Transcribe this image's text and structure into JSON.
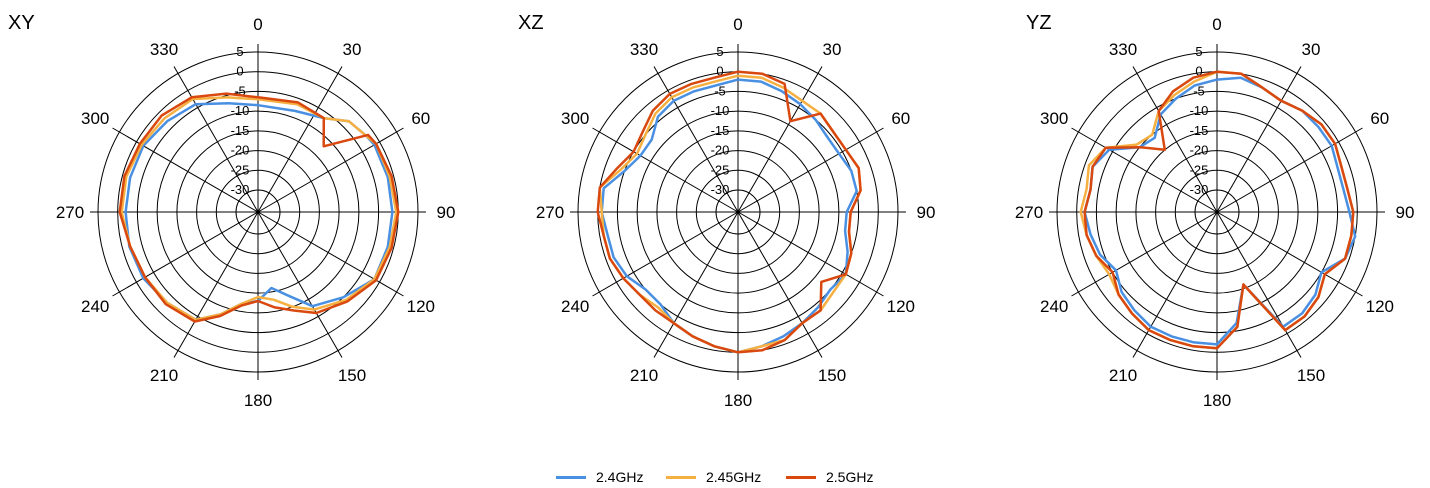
{
  "chart_data": [
    {
      "type": "polar-line",
      "title": "XY",
      "r_range": [
        -30,
        5
      ],
      "r_ticks": [
        "-30",
        "-25",
        "-20",
        "-15",
        "-10",
        "-5",
        "0",
        "5"
      ],
      "angle_ticks": [
        "0",
        "30",
        "60",
        "90",
        "120",
        "150",
        "180",
        "210",
        "240",
        "270",
        "300",
        "330"
      ],
      "series": [
        {
          "name": "2.4GHz",
          "angles": [
            0,
            20,
            35,
            45,
            55,
            60,
            75,
            90,
            105,
            120,
            135,
            150,
            160,
            170,
            180,
            190,
            200,
            210,
            225,
            240,
            255,
            270,
            285,
            300,
            315,
            330,
            345
          ],
          "values": [
            -8.5,
            -8.3,
            -6.5,
            -3,
            -2,
            -1.5,
            -1.5,
            -1.5,
            -1.5,
            -1.5,
            -5,
            -8,
            -13,
            -16,
            -13,
            -12,
            -8,
            -4,
            -3,
            -2,
            -1.8,
            -2,
            -2,
            -2,
            -3,
            -4,
            -7
          ]
        },
        {
          "name": "2.45GHz",
          "angles": [
            0,
            20,
            35,
            45,
            55,
            60,
            75,
            90,
            105,
            120,
            135,
            150,
            160,
            170,
            180,
            190,
            200,
            210,
            225,
            240,
            255,
            270,
            285,
            300,
            315,
            330,
            345
          ],
          "values": [
            -7,
            -6.5,
            -6.5,
            -3,
            -2,
            -1,
            -1,
            -0.5,
            -1,
            -1.5,
            -4,
            -7,
            -10,
            -13,
            -14,
            -12,
            -8,
            -4,
            -3,
            -2.5,
            -2,
            -1,
            -1,
            -1.5,
            -2,
            -2.5,
            -5.5
          ]
        },
        {
          "name": "2.5GHz",
          "angles": [
            0,
            20,
            35,
            45,
            55,
            60,
            75,
            90,
            105,
            120,
            135,
            150,
            160,
            170,
            180,
            190,
            200,
            210,
            225,
            240,
            255,
            270,
            285,
            300,
            315,
            330,
            345
          ],
          "values": [
            -6.5,
            -6,
            -6.5,
            -12,
            -1.5,
            -1,
            -0.5,
            0,
            -0.5,
            -1,
            -3.5,
            -6,
            -9,
            -11,
            -13,
            -11.5,
            -7.5,
            -3.5,
            -2.5,
            -2.5,
            -2,
            -0.5,
            -0.5,
            -1,
            -1,
            -2,
            -4.5
          ]
        }
      ]
    },
    {
      "type": "polar-line",
      "title": "XZ",
      "r_range": [
        -30,
        5
      ],
      "r_ticks": [
        "-30",
        "-25",
        "-20",
        "-15",
        "-10",
        "-5",
        "0",
        "5"
      ],
      "angle_ticks": [
        "0",
        "30",
        "60",
        "90",
        "120",
        "150",
        "180",
        "210",
        "240",
        "270",
        "300",
        "330"
      ],
      "series": [
        {
          "name": "2.4GHz",
          "angles": [
            0,
            10,
            20,
            30,
            40,
            50,
            60,
            70,
            80,
            90,
            100,
            110,
            120,
            130,
            140,
            150,
            160,
            170,
            180,
            190,
            200,
            210,
            220,
            230,
            240,
            250,
            260,
            270,
            280,
            290,
            300,
            310,
            320,
            330,
            340,
            350
          ],
          "values": [
            -2,
            -2,
            -3,
            -4,
            -5,
            -6,
            -6,
            -5,
            -5,
            -8,
            -8,
            -6,
            -4,
            -5,
            -4,
            -3,
            -2,
            -1,
            0,
            -1,
            -2,
            -3,
            -5,
            -5,
            -3,
            -2,
            -2,
            -1,
            -1,
            -5,
            -7,
            -7,
            -4,
            -3,
            -3,
            -3
          ]
        },
        {
          "name": "2.45GHz",
          "angles": [
            0,
            10,
            20,
            30,
            40,
            50,
            60,
            70,
            80,
            90,
            100,
            110,
            120,
            130,
            140,
            150,
            160,
            170,
            180,
            190,
            200,
            210,
            220,
            230,
            240,
            250,
            260,
            270,
            280,
            290,
            300,
            310,
            320,
            330,
            340,
            350
          ],
          "values": [
            -1,
            -1,
            -2,
            -3,
            -3,
            -4,
            -4,
            -3,
            -4,
            -7,
            -7,
            -5,
            -4,
            -4,
            -3,
            -3,
            -1,
            -1,
            0,
            -1,
            -2,
            -3,
            -4,
            -3,
            -2,
            -1,
            -1,
            -1,
            0,
            -4,
            -6,
            -5,
            -3,
            -2,
            -2,
            -2
          ]
        },
        {
          "name": "2.5GHz",
          "angles": [
            0,
            10,
            20,
            30,
            40,
            50,
            60,
            70,
            80,
            90,
            100,
            110,
            120,
            130,
            140,
            150,
            160,
            170,
            180,
            190,
            200,
            210,
            220,
            230,
            240,
            250,
            260,
            270,
            280,
            290,
            300,
            310,
            320,
            330,
            340,
            350
          ],
          "values": [
            0,
            0,
            -1,
            -9,
            -3,
            -4,
            -4,
            -3,
            -4,
            -7,
            -7,
            -5,
            -4,
            -8,
            -3,
            -3,
            -1,
            0,
            0,
            -1,
            -2,
            -3,
            -3,
            -3,
            -2,
            -1,
            -1,
            0,
            0,
            -3,
            -5,
            -4,
            -2,
            -1,
            -1,
            -1
          ]
        }
      ]
    },
    {
      "type": "polar-line",
      "title": "YZ",
      "r_range": [
        -30,
        5
      ],
      "r_ticks": [
        "-30",
        "-25",
        "-20",
        "-15",
        "-10",
        "-5",
        "0",
        "5"
      ],
      "angle_ticks": [
        "0",
        "30",
        "60",
        "90",
        "120",
        "150",
        "180",
        "210",
        "240",
        "270",
        "300",
        "330"
      ],
      "series": [
        {
          "name": "2.4GHz",
          "angles": [
            0,
            10,
            20,
            30,
            40,
            50,
            60,
            70,
            80,
            90,
            100,
            110,
            120,
            130,
            140,
            150,
            160,
            170,
            180,
            190,
            200,
            210,
            220,
            230,
            240,
            250,
            260,
            270,
            280,
            290,
            300,
            310,
            320,
            330,
            340,
            350
          ],
          "values": [
            -2,
            -1,
            -2,
            -3,
            -2,
            -2,
            -2,
            -3,
            -3,
            -2,
            0,
            -1,
            -5,
            -3,
            -2,
            -2,
            -16,
            -7,
            -2,
            -2,
            -2,
            -2,
            -3,
            -4,
            -6,
            -4,
            -3,
            -2,
            -3,
            -2,
            -4,
            -10,
            -11,
            -7,
            -5,
            -3
          ]
        },
        {
          "name": "2.45GHz",
          "angles": [
            0,
            10,
            20,
            30,
            40,
            50,
            60,
            70,
            80,
            90,
            100,
            110,
            120,
            130,
            140,
            150,
            160,
            170,
            180,
            190,
            200,
            210,
            220,
            230,
            240,
            250,
            260,
            270,
            280,
            290,
            300,
            310,
            320,
            330,
            340,
            350
          ],
          "values": [
            0,
            0,
            -2,
            -3,
            -2,
            -1,
            -1,
            -2,
            -2,
            -1,
            -1,
            -1,
            -4,
            -2,
            -1,
            -1,
            -16,
            -6,
            -1,
            -1,
            -1,
            -1,
            -2,
            -3,
            -4,
            -3,
            -2,
            -1,
            -2,
            -1,
            -3,
            -9,
            -10,
            -6,
            -4,
            -2
          ]
        },
        {
          "name": "2.5GHz",
          "angles": [
            0,
            10,
            20,
            30,
            40,
            50,
            60,
            70,
            80,
            90,
            100,
            110,
            120,
            130,
            140,
            150,
            160,
            170,
            180,
            190,
            200,
            210,
            220,
            230,
            240,
            250,
            260,
            270,
            280,
            290,
            300,
            310,
            320,
            330,
            340,
            350
          ],
          "values": [
            0,
            0,
            -2,
            -3,
            -2,
            -1,
            -1,
            -2,
            -2,
            -1,
            -1,
            -1,
            -4,
            -2,
            -1,
            -1,
            -16,
            -6,
            -1,
            -1,
            -1,
            -1,
            -2,
            -3,
            -5,
            -3,
            -2,
            -2,
            -3,
            -2,
            -3,
            -10,
            -15,
            -6,
            -3,
            -1
          ]
        }
      ]
    }
  ],
  "legend": [
    {
      "label": "2.4GHz",
      "color": "#4a90e2"
    },
    {
      "label": "2.45GHz",
      "color": "#f5b041"
    },
    {
      "label": "2.5GHz",
      "color": "#d9480f"
    }
  ]
}
